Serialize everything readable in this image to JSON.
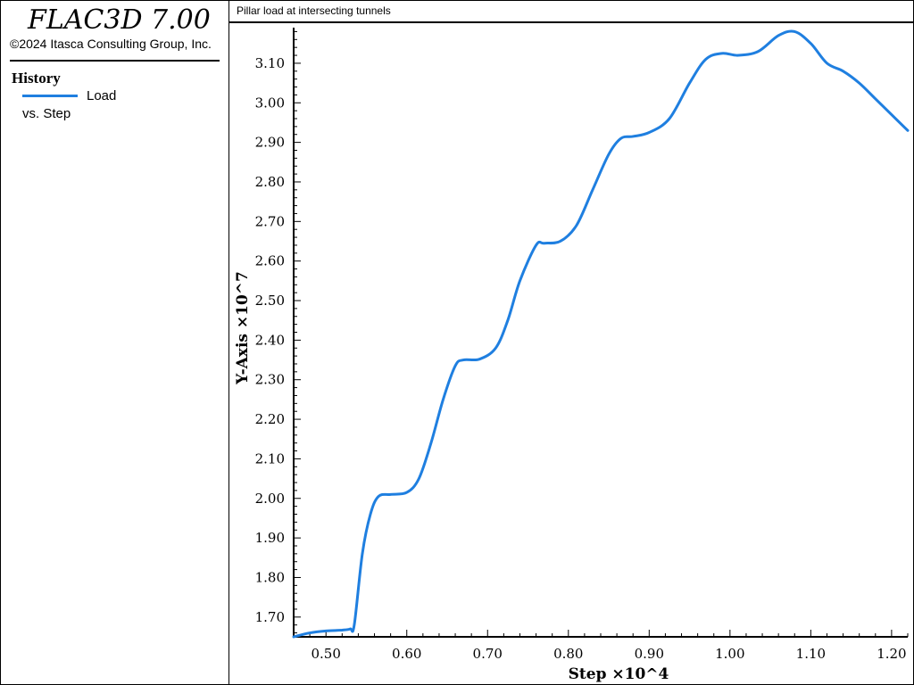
{
  "app": {
    "title": "FLAC3D 7.00",
    "copyright": "©2024 Itasca Consulting Group, Inc."
  },
  "legend": {
    "heading": "History",
    "series_label": "Load",
    "vs_label": "vs. Step"
  },
  "plot": {
    "title": "Pillar load at intersecting tunnels"
  },
  "colors": {
    "series": "#1f7fe0",
    "axis": "#000000",
    "background": "#ffffff"
  },
  "chart_data": {
    "type": "line",
    "title": "Pillar load at intersecting tunnels",
    "xlabel": "Step ×10^4",
    "ylabel": "Y-Axis ×10^7",
    "xlim": [
      0.46,
      1.22
    ],
    "ylim": [
      1.65,
      3.19
    ],
    "x_ticks": [
      0.5,
      0.6,
      0.7,
      0.8,
      0.9,
      1.0,
      1.1,
      1.2
    ],
    "x_tick_labels": [
      "0.50",
      "0.60",
      "0.70",
      "0.80",
      "0.90",
      "1.00",
      "1.10",
      "1.20"
    ],
    "y_ticks": [
      1.7,
      1.8,
      1.9,
      2.0,
      2.1,
      2.2,
      2.3,
      2.4,
      2.5,
      2.6,
      2.7,
      2.8,
      2.9,
      3.0,
      3.1
    ],
    "y_tick_labels": [
      "1.70",
      "1.80",
      "1.90",
      "2.00",
      "2.10",
      "2.20",
      "2.30",
      "2.40",
      "2.50",
      "2.60",
      "2.70",
      "2.80",
      "2.90",
      "3.00",
      "3.10"
    ],
    "grid": false,
    "legend_position": "left-panel",
    "series": [
      {
        "name": "Load",
        "color": "#1f7fe0",
        "x": [
          0.46,
          0.48,
          0.5,
          0.52,
          0.53,
          0.535,
          0.545,
          0.555,
          0.565,
          0.58,
          0.6,
          0.615,
          0.63,
          0.645,
          0.66,
          0.67,
          0.69,
          0.71,
          0.725,
          0.74,
          0.76,
          0.77,
          0.79,
          0.81,
          0.83,
          0.85,
          0.865,
          0.88,
          0.9,
          0.925,
          0.95,
          0.97,
          0.99,
          1.01,
          1.035,
          1.06,
          1.08,
          1.1,
          1.12,
          1.14,
          1.16,
          1.18,
          1.2,
          1.22
        ],
        "y": [
          1.65,
          1.66,
          1.665,
          1.667,
          1.67,
          1.68,
          1.86,
          1.96,
          2.005,
          2.01,
          2.015,
          2.05,
          2.14,
          2.25,
          2.335,
          2.35,
          2.352,
          2.38,
          2.45,
          2.55,
          2.64,
          2.645,
          2.65,
          2.69,
          2.78,
          2.87,
          2.91,
          2.915,
          2.925,
          2.96,
          3.05,
          3.11,
          3.125,
          3.12,
          3.13,
          3.17,
          3.18,
          3.15,
          3.1,
          3.08,
          3.05,
          3.01,
          2.97,
          2.93
        ]
      }
    ]
  }
}
